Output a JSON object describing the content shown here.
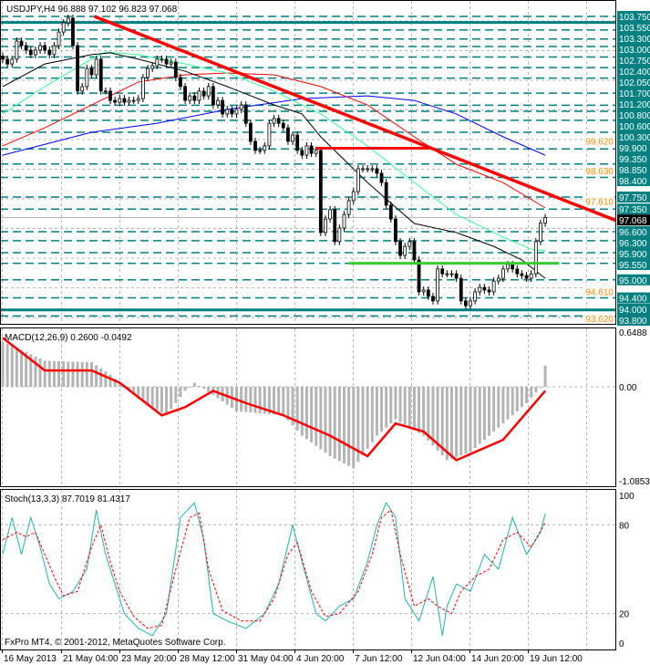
{
  "header": {
    "symbol_info": "USDJPY,H4  96.888 97.102 96.823 97.068"
  },
  "footer": {
    "copyright": "FxPro MT4, © 2001-2012, MetaQuotes Software Corp."
  },
  "colors": {
    "level_box": "#008080",
    "trendline": "#ff0000",
    "support": "#33cc33",
    "ma_black": "#000000",
    "ma_green": "#33ff99",
    "ma_red": "#ff0000",
    "ma_blue": "#0000ff",
    "macd_hist": "#b4b4b4",
    "stoch_main": "#20b2aa",
    "stoch_signal": "#ff0000",
    "orange_label": "#ff8c00"
  },
  "chart_data": [
    {
      "type": "candlestick",
      "title": "USDJPY,H4",
      "ohlc_last": {
        "open": 96.888,
        "high": 97.102,
        "low": 96.823,
        "close": 97.068
      },
      "x_tick_labels": [
        "16 May 2013",
        "21 May 04:00",
        "23 May 20:00",
        "28 May 12:00",
        "31 May 04:00",
        "4 Jun 20:00",
        "7 Jun 12:00",
        "12 Jun 04:00",
        "14 Jun 20:00",
        "19 Jun 12:00"
      ],
      "ylim": [
        93.62,
        103.95
      ],
      "closes": [
        102.33,
        102.17,
        102.33,
        102.93,
        102.78,
        102.63,
        102.48,
        102.63,
        102.78,
        102.63,
        102.48,
        102.78,
        103.23,
        103.54,
        103.69,
        102.78,
        101.27,
        101.42,
        102.02,
        101.81,
        102.33,
        101.27,
        101.27,
        100.96,
        100.9,
        101.02,
        100.9,
        100.96,
        100.96,
        101.02,
        101.72,
        102.02,
        102.11,
        102.33,
        102.33,
        102.17,
        102.23,
        101.72,
        101.42,
        100.96,
        101.11,
        100.96,
        101.27,
        101.11,
        101.42,
        100.81,
        100.96,
        100.51,
        100.66,
        100.51,
        100.66,
        100.81,
        100.2,
        99.6,
        99.3,
        99.3,
        99.45,
        100.2,
        100.36,
        100.2,
        100.05,
        99.6,
        99.81,
        99.3,
        99.14,
        99.45,
        99.2,
        99.3,
        96.57,
        97.02,
        97.33,
        96.27,
        96.72,
        97.17,
        97.63,
        97.93,
        98.69,
        98.69,
        98.69,
        98.69,
        98.54,
        98.23,
        97.48,
        97.02,
        96.27,
        95.81,
        96.11,
        96.27,
        95.66,
        94.6,
        94.66,
        94.45,
        94.3,
        95.36,
        95.2,
        95.2,
        95.2,
        95.05,
        94.3,
        94.14,
        94.3,
        94.6,
        94.75,
        94.66,
        94.6,
        94.96,
        95.05,
        95.36,
        95.51,
        95.36,
        95.2,
        95.14,
        95.05,
        95.2,
        96.27,
        96.88,
        97.07
      ],
      "moving_averages": [
        {
          "color": "#0000ff",
          "points": [
            [
              0,
              99.14
            ],
            [
              19,
              99.9
            ],
            [
              33,
              100.2
            ],
            [
              48,
              100.66
            ],
            [
              64,
              101.02
            ],
            [
              78,
              101.11
            ],
            [
              88,
              100.96
            ],
            [
              97,
              100.51
            ],
            [
              107,
              99.75
            ],
            [
              116,
              99.14
            ]
          ]
        },
        {
          "color": "#ff0000",
          "points": [
            [
              0,
              99.45
            ],
            [
              9,
              100.05
            ],
            [
              19,
              100.81
            ],
            [
              29,
              101.57
            ],
            [
              39,
              101.81
            ],
            [
              48,
              101.87
            ],
            [
              58,
              101.81
            ],
            [
              68,
              101.42
            ],
            [
              78,
              100.81
            ],
            [
              88,
              99.75
            ],
            [
              97,
              98.84
            ],
            [
              107,
              98.23
            ],
            [
              116,
              97.39
            ]
          ]
        },
        {
          "color": "#33ff99",
          "points": [
            [
              0,
              100.51
            ],
            [
              9,
              101.42
            ],
            [
              19,
              102.33
            ],
            [
              22,
              102.57
            ],
            [
              29,
              102.48
            ],
            [
              39,
              102.17
            ],
            [
              48,
              101.87
            ],
            [
              58,
              101.27
            ],
            [
              68,
              100.51
            ],
            [
              78,
              99.45
            ],
            [
              88,
              98.23
            ],
            [
              97,
              97.17
            ],
            [
              107,
              96.42
            ],
            [
              113,
              96.02
            ],
            [
              116,
              95.96
            ]
          ]
        },
        {
          "color": "#000000",
          "points": [
            [
              0,
              101.42
            ],
            [
              9,
              102.17
            ],
            [
              19,
              102.48
            ],
            [
              23,
              102.54
            ],
            [
              29,
              102.33
            ],
            [
              39,
              101.93
            ],
            [
              48,
              101.42
            ],
            [
              58,
              100.81
            ],
            [
              64,
              100.51
            ],
            [
              68,
              99.75
            ],
            [
              78,
              98.23
            ],
            [
              88,
              96.87
            ],
            [
              97,
              96.57
            ],
            [
              105,
              96.11
            ],
            [
              111,
              95.66
            ],
            [
              116,
              95.05
            ]
          ]
        }
      ],
      "trendline": {
        "from": [
          19.6,
          103.75
        ],
        "to": [
          131.8,
          96.93
        ]
      },
      "resistance_line": {
        "price": 99.37,
        "from_bar": 67,
        "to_bar": 91
      },
      "support_line": {
        "price": 95.55,
        "from_bar": 74,
        "to_bar": 119
      },
      "price_levels": [
        "103.750",
        "103.550",
        "103.300",
        "103.000",
        "102.750",
        "102.400",
        "102.050",
        "101.700",
        "101.200",
        "100.800",
        "100.600",
        "100.300",
        "99.900",
        "99.350",
        "98.850",
        "98.400",
        "97.750",
        "97.350",
        "96.600",
        "96.300",
        "95.900",
        "95.550",
        "95.000",
        "94.400",
        "94.000",
        "93.800"
      ],
      "thick_levels": [
        "103.550",
        "94.000"
      ],
      "orange_labels": [
        "99.620",
        "98.630",
        "97.610",
        "94.610",
        "93.620"
      ],
      "current_price": "97.068"
    },
    {
      "type": "bar",
      "title": "MACD(12,26,9) 0.2600 -0.0492",
      "y_tick_labels": [
        "0.6488",
        "0.00",
        "-1.0853"
      ],
      "ylim": [
        -1.0853,
        0.6488
      ],
      "histogram": [
        [
          0,
          0.55
        ],
        [
          4,
          0.45
        ],
        [
          9,
          0.32
        ],
        [
          19,
          0.3
        ],
        [
          23,
          0.15
        ],
        [
          29,
          -0.15
        ],
        [
          35,
          -0.35
        ],
        [
          39,
          -0.05
        ],
        [
          41,
          0.05
        ],
        [
          45,
          -0.1
        ],
        [
          50,
          -0.3
        ],
        [
          60,
          -0.35
        ],
        [
          64,
          -0.6
        ],
        [
          70,
          -0.85
        ],
        [
          75,
          -1.0
        ],
        [
          80,
          -0.6
        ],
        [
          84,
          -0.4
        ],
        [
          90,
          -0.6
        ],
        [
          95,
          -0.9
        ],
        [
          100,
          -0.8
        ],
        [
          106,
          -0.5
        ],
        [
          112,
          -0.2
        ],
        [
          115,
          0.0
        ],
        [
          116,
          0.26
        ]
      ],
      "signal": [
        [
          0,
          0.6
        ],
        [
          9,
          0.2
        ],
        [
          19,
          0.2
        ],
        [
          25,
          0.05
        ],
        [
          34,
          -0.35
        ],
        [
          39,
          -0.25
        ],
        [
          45,
          -0.05
        ],
        [
          52,
          -0.2
        ],
        [
          60,
          -0.35
        ],
        [
          70,
          -0.6
        ],
        [
          78,
          -0.85
        ],
        [
          84,
          -0.45
        ],
        [
          90,
          -0.55
        ],
        [
          97,
          -0.9
        ],
        [
          107,
          -0.65
        ],
        [
          116,
          -0.05
        ]
      ]
    },
    {
      "type": "line",
      "title": "Stoch(13,3,3) 87.7019 81.4317",
      "y_tick_labels": [
        "100",
        "80",
        "20",
        "0"
      ],
      "ylim": [
        0,
        100
      ],
      "main": [
        [
          0,
          60
        ],
        [
          2,
          85
        ],
        [
          4,
          60
        ],
        [
          6,
          85
        ],
        [
          8,
          65
        ],
        [
          10,
          40
        ],
        [
          12,
          30
        ],
        [
          15,
          35
        ],
        [
          18,
          50
        ],
        [
          20,
          90
        ],
        [
          22,
          60
        ],
        [
          24,
          40
        ],
        [
          26,
          20
        ],
        [
          29,
          10
        ],
        [
          32,
          5
        ],
        [
          35,
          20
        ],
        [
          38,
          85
        ],
        [
          41,
          95
        ],
        [
          43,
          70
        ],
        [
          45,
          20
        ],
        [
          48,
          15
        ],
        [
          52,
          10
        ],
        [
          56,
          20
        ],
        [
          59,
          40
        ],
        [
          62,
          80
        ],
        [
          64,
          55
        ],
        [
          67,
          20
        ],
        [
          69,
          15
        ],
        [
          72,
          25
        ],
        [
          75,
          30
        ],
        [
          78,
          55
        ],
        [
          80,
          80
        ],
        [
          82,
          95
        ],
        [
          84,
          85
        ],
        [
          86,
          30
        ],
        [
          89,
          15
        ],
        [
          92,
          45
        ],
        [
          94,
          5
        ],
        [
          95,
          25
        ],
        [
          97,
          40
        ],
        [
          100,
          35
        ],
        [
          103,
          60
        ],
        [
          106,
          50
        ],
        [
          109,
          85
        ],
        [
          112,
          60
        ],
        [
          115,
          75
        ],
        [
          116,
          87.7
        ]
      ],
      "signal": [
        [
          0,
          70
        ],
        [
          3,
          75
        ],
        [
          5,
          72
        ],
        [
          7,
          75
        ],
        [
          9,
          60
        ],
        [
          11,
          45
        ],
        [
          13,
          32
        ],
        [
          16,
          35
        ],
        [
          19,
          65
        ],
        [
          21,
          80
        ],
        [
          23,
          55
        ],
        [
          25,
          35
        ],
        [
          28,
          18
        ],
        [
          31,
          10
        ],
        [
          34,
          12
        ],
        [
          37,
          50
        ],
        [
          40,
          85
        ],
        [
          42,
          88
        ],
        [
          44,
          50
        ],
        [
          47,
          22
        ],
        [
          51,
          15
        ],
        [
          55,
          15
        ],
        [
          58,
          30
        ],
        [
          61,
          60
        ],
        [
          63,
          68
        ],
        [
          66,
          35
        ],
        [
          69,
          18
        ],
        [
          72,
          20
        ],
        [
          76,
          35
        ],
        [
          79,
          60
        ],
        [
          81,
          85
        ],
        [
          83,
          90
        ],
        [
          85,
          60
        ],
        [
          88,
          25
        ],
        [
          91,
          30
        ],
        [
          93,
          25
        ],
        [
          96,
          20
        ],
        [
          98,
          35
        ],
        [
          101,
          45
        ],
        [
          104,
          50
        ],
        [
          107,
          70
        ],
        [
          110,
          75
        ],
        [
          113,
          65
        ],
        [
          116,
          81.4
        ]
      ]
    }
  ]
}
